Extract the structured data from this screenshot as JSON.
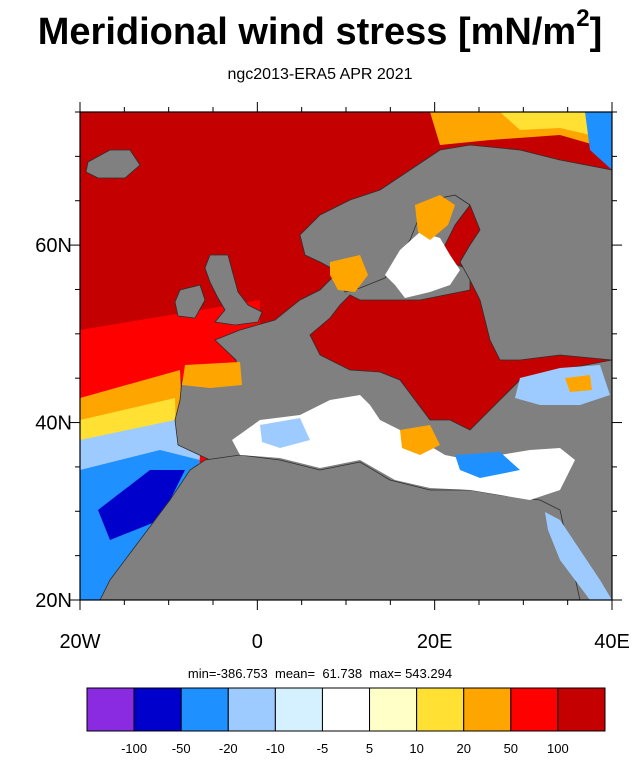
{
  "title": {
    "main": "Meridional wind stress [mN/m",
    "superscript": "2",
    "close": "]"
  },
  "subtitle": "ngc2013-ERA5  APR 2021",
  "axes": {
    "x_ticks": [
      "20W",
      "0",
      "20E",
      "40E"
    ],
    "y_ticks": [
      "20N",
      "40N",
      "60N"
    ],
    "lon_range": [
      -20,
      40
    ],
    "lat_range": [
      20,
      75
    ]
  },
  "stats": "min=-386.753  mean=  61.738  max= 543.294",
  "colorbar": {
    "colors": [
      "#8a2be2",
      "#0000cd",
      "#1e90ff",
      "#9ecbff",
      "#d5f0ff",
      "#ffffff",
      "#ffffc8",
      "#ffe033",
      "#ffa500",
      "#ff0000",
      "#c40000"
    ],
    "labels": [
      "-100",
      "-50",
      "-20",
      "-10",
      "-5",
      "5",
      "10",
      "20",
      "50",
      "100"
    ]
  },
  "colors": {
    "land": "#808080",
    "coastline": "#2e2e2e"
  }
}
